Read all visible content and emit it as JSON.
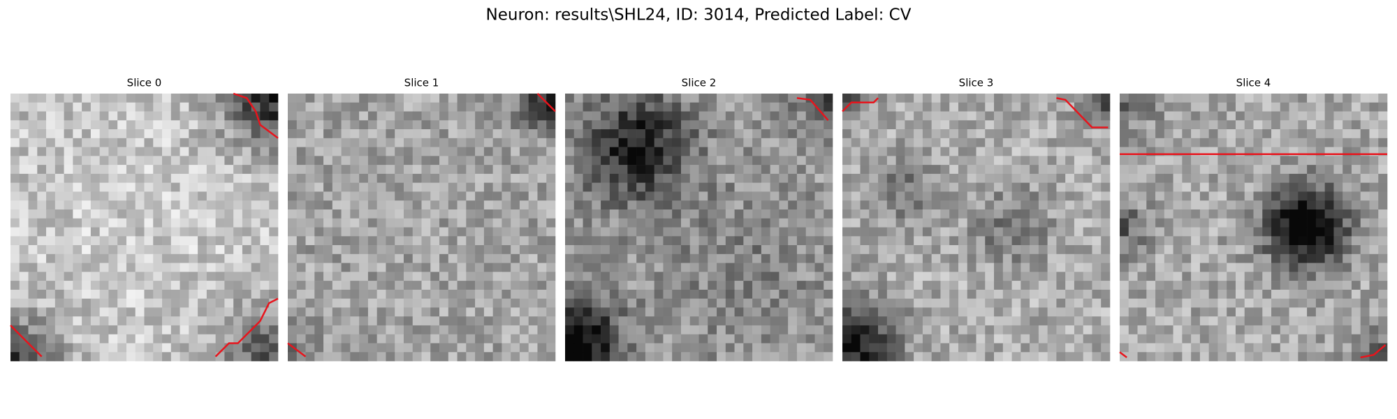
{
  "title": "Neuron: results\\SHL24, ID: 3014, Predicted Label: CV",
  "panels": [
    {
      "title": "Slice 0"
    },
    {
      "title": "Slice 1"
    },
    {
      "title": "Slice 2"
    },
    {
      "title": "Slice 3"
    },
    {
      "title": "Slice 4"
    }
  ]
}
